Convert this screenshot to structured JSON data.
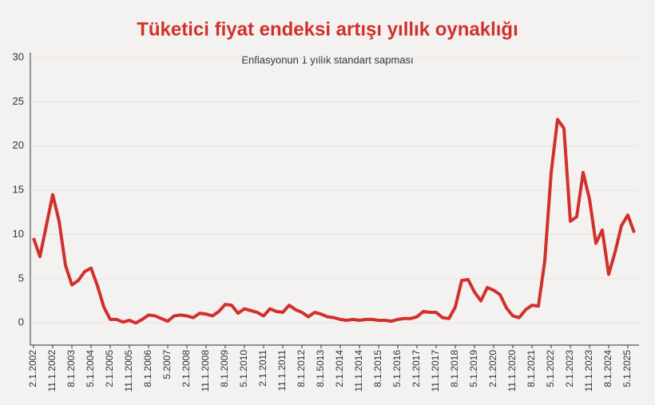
{
  "chart_data": {
    "type": "line",
    "title": "Tüketici fiyat endeksi artışı yıllık oynaklığı",
    "subtitle": "Enflasyonun 1 yıllık standart sapması",
    "categories": [
      "2.1.2002",
      null,
      null,
      "11.1.2002",
      null,
      null,
      "8.1.2003",
      null,
      null,
      "5.1.2004",
      null,
      null,
      "2.1.2005",
      null,
      null,
      "11.1.2005",
      null,
      null,
      "8.1.2006",
      null,
      null,
      "5.2007",
      null,
      null,
      "2.1.2008",
      null,
      null,
      "11.1.2008",
      null,
      null,
      "8.1.2009",
      null,
      null,
      "5.1.2010",
      null,
      null,
      "2.1.2011",
      null,
      null,
      "11.1.2011",
      null,
      null,
      "8.1.2012",
      null,
      null,
      "8.1.5013",
      null,
      null,
      "2.1.2014",
      null,
      null,
      "11.1.2014",
      null,
      null,
      "8.1.2015",
      null,
      null,
      "5.1.2016",
      null,
      null,
      "2.1.2017",
      null,
      null,
      "11.1.2017",
      null,
      null,
      "8.1.2018",
      null,
      null,
      "5.1.2019",
      null,
      null,
      "2.1.2020",
      null,
      null,
      "11.1.2020",
      null,
      null,
      "8.1.2021",
      null,
      null,
      "5.1.2022",
      null,
      null,
      "2.1.2023",
      null,
      null,
      "11.1.2023",
      null,
      null,
      "8.1.2024",
      null,
      null,
      "5.1.2025",
      null
    ],
    "series": [
      {
        "color": "#d0312d",
        "values": [
          9.6,
          7.5,
          11,
          14.5,
          11.5,
          6.5,
          4.3,
          4.8,
          5.8,
          6.2,
          4.2,
          1.8,
          0.4,
          0.4,
          0.1,
          0.3,
          0.0,
          0.4,
          0.9,
          0.8,
          0.5,
          0.2,
          0.8,
          0.9,
          0.8,
          0.6,
          1.1,
          1.0,
          0.8,
          1.3,
          2.1,
          2.0,
          1.1,
          1.6,
          1.4,
          1.2,
          0.8,
          1.6,
          1.3,
          1.2,
          2.0,
          1.5,
          1.2,
          0.7,
          1.2,
          1.0,
          0.7,
          0.6,
          0.4,
          0.3,
          0.4,
          0.3,
          0.4,
          0.4,
          0.3,
          0.3,
          0.2,
          0.4,
          0.5,
          0.5,
          0.7,
          1.3,
          1.2,
          1.2,
          0.6,
          0.5,
          1.8,
          4.8,
          4.9,
          3.5,
          2.5,
          4.0,
          3.7,
          3.2,
          1.7,
          0.8,
          0.6,
          1.5,
          2.0,
          1.9,
          7,
          17,
          23,
          22,
          11.5,
          12,
          17,
          14,
          9,
          10.5,
          5.5,
          8,
          11,
          12.2,
          10.2
        ]
      }
    ],
    "ylim": [
      -2.5,
      30
    ],
    "yticks": [
      0,
      5,
      10,
      15,
      20,
      25,
      30
    ],
    "grid": true
  }
}
